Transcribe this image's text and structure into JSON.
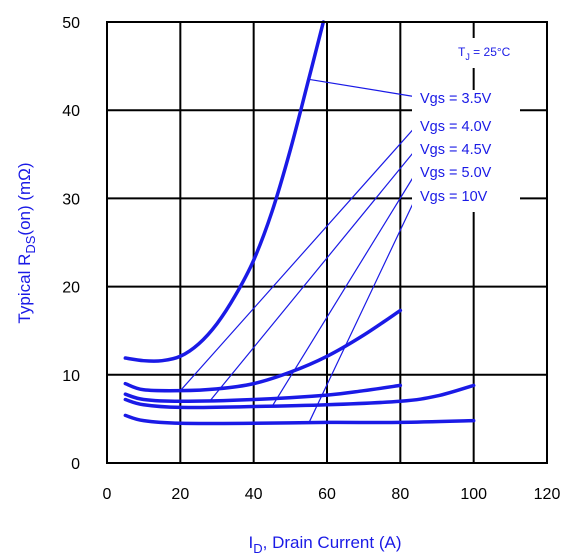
{
  "chart_data": {
    "type": "line",
    "xlabel_main": "I",
    "xlabel_sub": "D",
    "xlabel_rest": ", Drain Current (A)",
    "ylabel_main": "Typical R",
    "ylabel_sub": "DS",
    "ylabel_rest": "(on) (mΩ)",
    "annotation_main": "T",
    "annotation_sub": "J",
    "annotation_rest": " = 25°C",
    "xlim": [
      0,
      120
    ],
    "ylim": [
      0,
      50
    ],
    "xticks": [
      0,
      20,
      40,
      60,
      80,
      100,
      120
    ],
    "yticks": [
      0,
      10,
      20,
      30,
      40,
      50
    ],
    "grid": true,
    "line_color": "#1a1ae6",
    "series": [
      {
        "name": "Vgs = 3.5V",
        "x": [
          5,
          10,
          15,
          20,
          25,
          30,
          35,
          40,
          45,
          50,
          55,
          59
        ],
        "y": [
          11.9,
          11.6,
          11.6,
          12.1,
          13.5,
          15.8,
          19.0,
          23.0,
          28.5,
          35.5,
          43.5,
          50
        ]
      },
      {
        "name": "Vgs = 4.0V",
        "x": [
          5,
          10,
          20,
          30,
          40,
          50,
          60,
          70,
          80
        ],
        "y": [
          9.0,
          8.3,
          8.2,
          8.4,
          9.0,
          10.3,
          12.1,
          14.5,
          17.3
        ]
      },
      {
        "name": "Vgs = 4.5V",
        "x": [
          5,
          10,
          20,
          40,
          60,
          70,
          80
        ],
        "y": [
          7.8,
          7.2,
          7.0,
          7.2,
          7.7,
          8.2,
          8.8
        ]
      },
      {
        "name": "Vgs = 5.0V",
        "x": [
          5,
          10,
          20,
          40,
          60,
          80,
          90,
          100
        ],
        "y": [
          7.2,
          6.6,
          6.3,
          6.4,
          6.6,
          7.0,
          7.6,
          8.8
        ]
      },
      {
        "name": "Vgs = 10V",
        "x": [
          5,
          10,
          20,
          40,
          60,
          80,
          100
        ],
        "y": [
          5.4,
          4.8,
          4.5,
          4.5,
          4.6,
          4.6,
          4.8
        ]
      }
    ],
    "legend_entries": [
      {
        "name": "Vgs = 3.5V",
        "pointer": [
          55,
          43.5
        ]
      },
      {
        "name": "Vgs = 4.0V",
        "pointer": [
          20,
          8.2
        ]
      },
      {
        "name": "Vgs = 4.5V",
        "pointer": [
          28,
          7.0
        ]
      },
      {
        "name": "Vgs = 5.0V",
        "pointer": [
          45,
          6.4
        ]
      },
      {
        "name": "Vgs = 10V",
        "pointer": [
          55,
          4.5
        ]
      }
    ]
  }
}
